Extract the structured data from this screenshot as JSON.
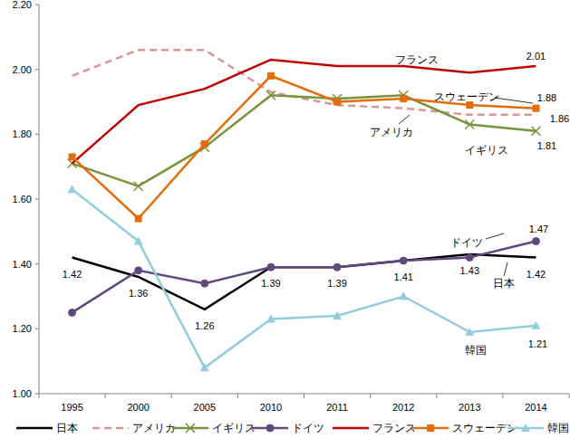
{
  "chart_data": {
    "type": "line",
    "categories": [
      "1995",
      "2000",
      "2005",
      "2010",
      "2011",
      "2012",
      "2013",
      "2014"
    ],
    "ylim": [
      1,
      2.2
    ],
    "yticks": [
      {
        "value": 1,
        "label": "1.00"
      },
      {
        "value": 1.2,
        "label": "1.20"
      },
      {
        "value": 1.4,
        "label": "1.40"
      },
      {
        "value": 1.6,
        "label": "1.60"
      },
      {
        "value": 1.8,
        "label": "1.80"
      },
      {
        "value": 2,
        "label": "2.00"
      },
      {
        "value": 2.2,
        "label": "2.20"
      }
    ],
    "grid": false,
    "legend": "bottom",
    "data_labels": true,
    "series": [
      {
        "name": "日本",
        "color": "#000000",
        "marker": "none",
        "line_style": "solid",
        "values": [
          1.42,
          1.36,
          1.26,
          1.39,
          1.39,
          1.41,
          1.43,
          1.42
        ],
        "value_labels": [
          "1.42",
          "1.36",
          "1.26",
          "1.39",
          "1.39",
          "1.41",
          "1.43",
          "1.42"
        ]
      },
      {
        "name": "アメリカ",
        "color": "#d99694",
        "marker": "none",
        "line_style": "dashed",
        "values": [
          1.98,
          2.06,
          2.06,
          1.93,
          1.89,
          1.88,
          1.86,
          1.86
        ],
        "value_labels": [
          null,
          null,
          null,
          null,
          null,
          null,
          null,
          "1.86"
        ]
      },
      {
        "name": "イギリス",
        "color": "#77933c",
        "marker": "x",
        "line_style": "solid",
        "values": [
          1.71,
          1.64,
          1.76,
          1.92,
          1.91,
          1.92,
          1.83,
          1.81
        ],
        "value_labels": [
          null,
          null,
          null,
          null,
          null,
          null,
          null,
          "1.81"
        ]
      },
      {
        "name": "ドイツ",
        "color": "#604a7b",
        "marker": "circle",
        "line_style": "solid",
        "values": [
          1.25,
          1.38,
          1.34,
          1.39,
          1.39,
          1.41,
          1.42,
          1.47
        ],
        "value_labels": [
          null,
          null,
          null,
          null,
          null,
          null,
          null,
          "1.47"
        ]
      },
      {
        "name": "フランス",
        "color": "#c00000",
        "marker": "none",
        "line_style": "solid",
        "values": [
          1.71,
          1.89,
          1.94,
          2.03,
          2.01,
          2.01,
          1.99,
          2.01
        ],
        "value_labels": [
          null,
          null,
          null,
          null,
          null,
          null,
          null,
          "2.01"
        ]
      },
      {
        "name": "スウェーデン",
        "color": "#e46c0a",
        "marker": "square",
        "line_style": "solid",
        "values": [
          1.73,
          1.54,
          1.77,
          1.98,
          1.9,
          1.91,
          1.89,
          1.88
        ],
        "value_labels": [
          null,
          null,
          null,
          null,
          null,
          null,
          null,
          "1.88"
        ]
      },
      {
        "name": "韓国",
        "color": "#93cddd",
        "marker": "triangle",
        "line_style": "solid",
        "values": [
          1.63,
          1.47,
          1.08,
          1.23,
          1.24,
          1.3,
          1.19,
          1.21
        ],
        "value_labels": [
          null,
          null,
          null,
          null,
          null,
          null,
          null,
          "1.21"
        ]
      }
    ]
  }
}
